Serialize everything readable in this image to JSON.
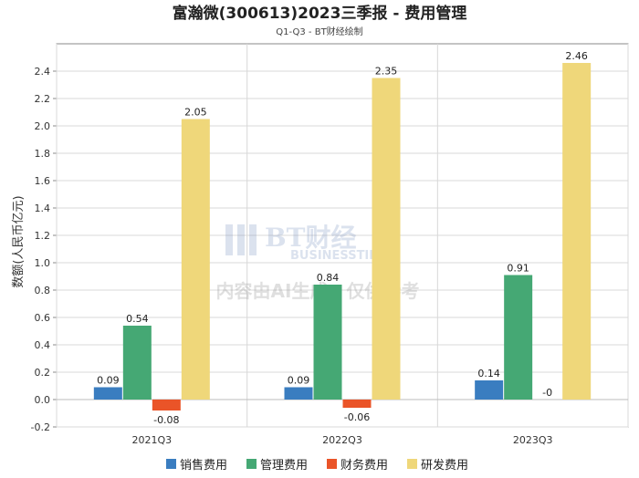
{
  "chart_data": {
    "type": "bar",
    "title": "富瀚微(300613)2023三季报 - 费用管理",
    "subtitle": "Q1-Q3 - BT财经绘制",
    "xlabel": "",
    "ylabel": "数额(人民币亿元)",
    "ylim": [
      -0.2,
      2.6
    ],
    "yticks": [
      -0.2,
      0.0,
      0.2,
      0.4,
      0.6,
      0.8,
      1.0,
      1.2,
      1.4,
      1.6,
      1.8,
      2.0,
      2.2,
      2.4
    ],
    "ytick_labels": [
      "-0.2",
      "0.0",
      "0.2",
      "0.4",
      "0.6",
      "0.8",
      "1.0",
      "1.2",
      "1.4",
      "1.6",
      "1.8",
      "2.0",
      "2.2",
      "2.4"
    ],
    "grid": true,
    "legend_position": "bottom",
    "categories": [
      "2021Q3",
      "2022Q3",
      "2023Q3"
    ],
    "series": [
      {
        "name": "销售费用",
        "color": "#3a7dc0",
        "values": [
          0.09,
          0.09,
          0.14
        ],
        "labels": [
          "0.09",
          "0.09",
          "0.14"
        ]
      },
      {
        "name": "管理费用",
        "color": "#45a874",
        "values": [
          0.54,
          0.84,
          0.91
        ],
        "labels": [
          "0.54",
          "0.84",
          "0.91"
        ]
      },
      {
        "name": "财务费用",
        "color": "#ea5428",
        "values": [
          -0.08,
          -0.06,
          0.0
        ],
        "labels": [
          "-0.08",
          "-0.06",
          "-0"
        ]
      },
      {
        "name": "研发费用",
        "color": "#efd77a",
        "values": [
          2.05,
          2.35,
          2.46
        ],
        "labels": [
          "2.05",
          "2.35",
          "2.46"
        ]
      }
    ]
  },
  "watermark": {
    "logo_text": "BT财经",
    "logo_subtext": "BUSINESSTIMES",
    "notice": "内容由AI生成，仅供参考"
  }
}
